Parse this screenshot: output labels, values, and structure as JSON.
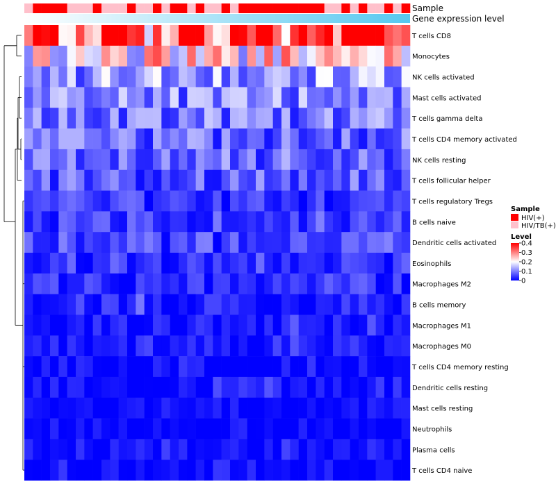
{
  "chart_data": {
    "type": "heatmap",
    "title": "",
    "rows": [
      "T cells CD8",
      "Monocytes",
      "NK cells activated",
      "Mast cells activated",
      "T cells gamma delta",
      "T cells CD4 memory activated",
      "NK cells resting",
      "T cells follicular helper",
      "T cells regulatory  Tregs",
      "B cells naive",
      "Dendritic cells activated",
      "Eosinophils",
      "Macrophages M2",
      "B cells memory",
      "Macrophages M1",
      "Macrophages M0",
      "T cells CD4 memory resting",
      "Dendritic cells resting",
      "Mast cells resting",
      "Neutrophils",
      "Plasma cells",
      "T cells CD4 naive"
    ],
    "n_samples": 45,
    "row_level_estimates": [
      0.34,
      0.22,
      0.12,
      0.1,
      0.09,
      0.08,
      0.08,
      0.07,
      0.04,
      0.05,
      0.05,
      0.04,
      0.035,
      0.025,
      0.012,
      0.012,
      0.005,
      0.005,
      0.004,
      0.002,
      0.008,
      0.004
    ],
    "annotations": {
      "sample": {
        "label": "Sample",
        "legend_title": "Sample",
        "levels": [
          "HIV(+)",
          "HIV/TB(+)"
        ],
        "colors": [
          "#FF0000",
          "#FFC0CB"
        ],
        "values": [
          1,
          0,
          0,
          0,
          0,
          1,
          1,
          1,
          0,
          1,
          1,
          1,
          0,
          1,
          1,
          0,
          1,
          0,
          0,
          1,
          0,
          1,
          1,
          0,
          1,
          0,
          0,
          0,
          0,
          0,
          0,
          0,
          0,
          0,
          0,
          1,
          1,
          0,
          1,
          0,
          1,
          1,
          0,
          1,
          0
        ]
      },
      "gene_expression": {
        "label": "Gene expression level",
        "gradient": [
          "#FFFFFF",
          "#56C8F0"
        ]
      }
    },
    "color_scale": {
      "legend_title": "Level",
      "min": 0,
      "max": 0.4,
      "ticks": [
        0.4,
        0.3,
        0.2,
        0.1,
        0
      ],
      "tick_labels": [
        "0.4",
        "0.3",
        "0.2",
        "0.1",
        "0"
      ],
      "colors": [
        "#0000FF",
        "#FFFFFF",
        "#FF0000"
      ],
      "mid": 0.2
    },
    "dendrogram": "row"
  }
}
